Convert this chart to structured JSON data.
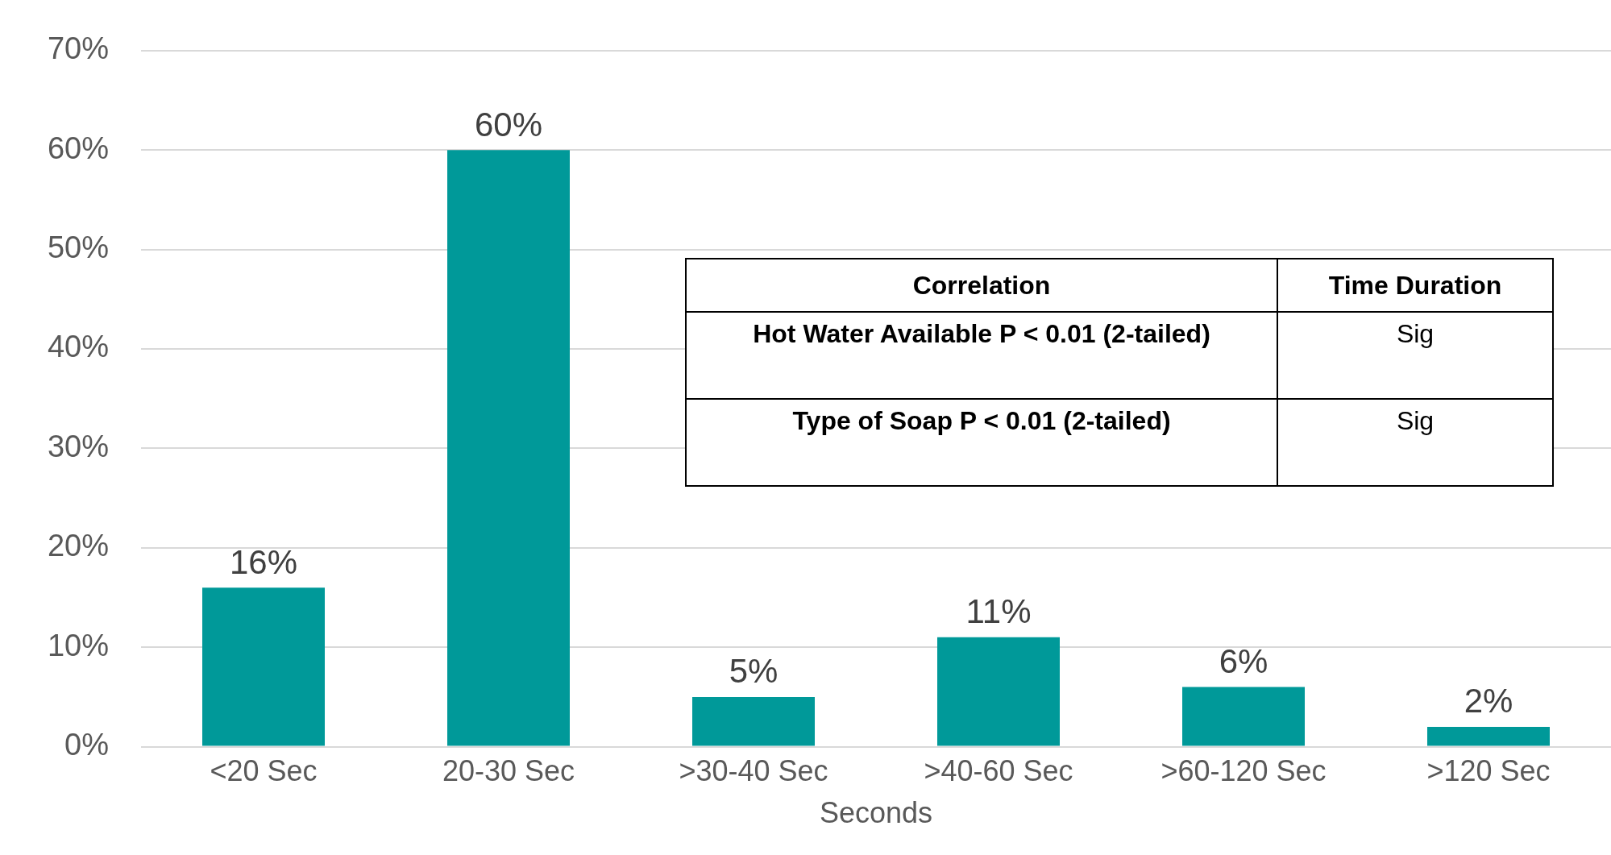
{
  "chart_data": {
    "type": "bar",
    "xlabel": "Seconds",
    "categories": [
      "<20 Sec",
      "20-30 Sec",
      ">30-40 Sec",
      ">40-60 Sec",
      ">60-120 Sec",
      ">120 Sec"
    ],
    "values": [
      16,
      60,
      5,
      11,
      6,
      2
    ],
    "value_labels": [
      "16%",
      "60%",
      "5%",
      "11%",
      "6%",
      "2%"
    ],
    "color": "#009999",
    "ylim": [
      0,
      70
    ],
    "yticks": [
      {
        "value": 0,
        "label": "0%"
      },
      {
        "value": 10,
        "label": "10%"
      },
      {
        "value": 20,
        "label": "20%"
      },
      {
        "value": 30,
        "label": "30%"
      },
      {
        "value": 40,
        "label": "40%"
      },
      {
        "value": 50,
        "label": "50%"
      },
      {
        "value": 60,
        "label": "60%"
      },
      {
        "value": 70,
        "label": "70%"
      }
    ],
    "grid": "y",
    "legend": false,
    "annotations": [
      "Correlation",
      "Time Duration",
      "Hot Water Available P < 0.01 (2-tailed)",
      "Sig",
      "Type of Soap P < 0.01 (2-tailed)",
      "Sig"
    ]
  }
}
